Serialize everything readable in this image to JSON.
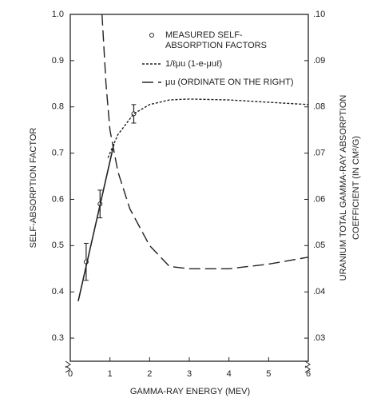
{
  "chart_data": {
    "type": "line",
    "xlabel": "GAMMA-RAY ENERGY (MEV)",
    "ylabel": "SELF-ABSORPTION FACTOR",
    "y2label": [
      "URANIUM TOTAL GAMMA-RAY ABSORPTION",
      "COEFFICIENT (IN CM²/G)"
    ],
    "xlim": [
      0,
      6
    ],
    "xticks": [
      0,
      1,
      2,
      3,
      4,
      5,
      6
    ],
    "ylim": [
      0.25,
      1.0
    ],
    "yticks": [
      {
        "value": 1.0,
        "label": "1.0"
      },
      0.9,
      0.8,
      0.7,
      0.6,
      0.5,
      0.4,
      0.3
    ],
    "y2lim": [
      0.025,
      0.1
    ],
    "y2ticks": [
      {
        "value": 0.1,
        "label": ".10"
      },
      {
        "value": 0.09,
        "label": ".09"
      },
      {
        "value": 0.08,
        "label": ".08"
      },
      {
        "value": 0.07,
        "label": ".07"
      },
      {
        "value": 0.06,
        "label": ".06"
      },
      {
        "value": 0.05,
        "label": ".05"
      },
      {
        "value": 0.04,
        "label": ".04"
      },
      {
        "value": 0.03,
        "label": ".03"
      }
    ],
    "series": [
      {
        "name": [
          "MEASURED SELF-",
          "ABSORPTION FACTORS"
        ],
        "style": "points",
        "color": "#222",
        "x": [
          0.4,
          0.75,
          1.6
        ],
        "values": [
          0.465,
          0.59,
          0.785
        ],
        "errors": [
          0.04,
          0.03,
          0.02
        ]
      },
      {
        "style": "solid",
        "color": "#222",
        "x": [
          0.2,
          1.1
        ],
        "values": [
          0.38,
          0.72
        ]
      },
      {
        "name": [
          "1/ℓμu (1-e-μuℓ)"
        ],
        "style": "dashed",
        "color": "#222",
        "x": [
          0.95,
          1.2,
          1.6,
          2.0,
          2.5,
          3.0,
          4.0,
          5.0,
          6.0
        ],
        "values": [
          0.69,
          0.74,
          0.785,
          0.805,
          0.815,
          0.817,
          0.815,
          0.81,
          0.805
        ]
      },
      {
        "name": [
          "μu (ORDINATE ON THE RIGHT)"
        ],
        "style": "longdash",
        "color": "#222",
        "axis": "y2",
        "x": [
          0.8,
          0.9,
          1.0,
          1.2,
          1.5,
          2.0,
          2.5,
          3.0,
          4.0,
          5.0,
          6.0
        ],
        "values": [
          0.1,
          0.085,
          0.075,
          0.066,
          0.058,
          0.05,
          0.0455,
          0.045,
          0.045,
          0.046,
          0.0475
        ]
      }
    ]
  }
}
